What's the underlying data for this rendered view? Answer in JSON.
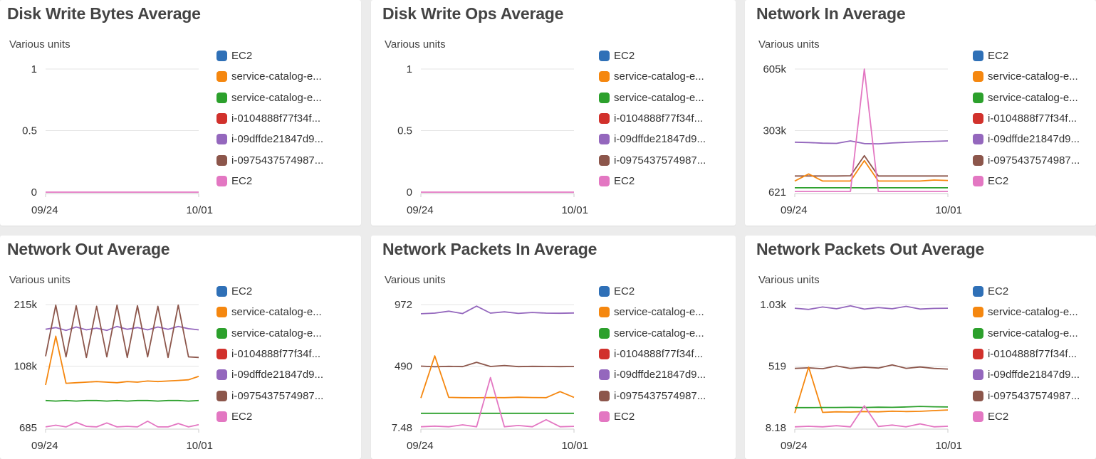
{
  "legend": [
    {
      "label": "EC2",
      "color": "#2f70b7"
    },
    {
      "label": "service-catalog-e...",
      "color": "#f5870f"
    },
    {
      "label": "service-catalog-e...",
      "color": "#2ca02c"
    },
    {
      "label": "i-0104888f77f34f...",
      "color": "#d1312c"
    },
    {
      "label": "i-09dffde21847d9...",
      "color": "#9467bd"
    },
    {
      "label": "i-0975437574987...",
      "color": "#8c564b"
    },
    {
      "label": "EC2",
      "color": "#e377c2"
    }
  ],
  "panels": [
    {
      "title": "Disk Write Bytes Average",
      "unit_label": "Various units",
      "chart_data": {
        "type": "line",
        "ylabel": "Various units",
        "y_ticks": [
          "1",
          "0.5",
          "0"
        ],
        "x_ticks": [
          "09/24",
          "10/01"
        ],
        "ylim": [
          0,
          1
        ],
        "series": [
          {
            "name": "EC2",
            "color": "#e377c2",
            "values": [
              0,
              0
            ]
          }
        ]
      }
    },
    {
      "title": "Disk Write Ops Average",
      "unit_label": "Various units",
      "chart_data": {
        "type": "line",
        "ylabel": "Various units",
        "y_ticks": [
          "1",
          "0.5",
          "0"
        ],
        "x_ticks": [
          "09/24",
          "10/01"
        ],
        "ylim": [
          0,
          1
        ],
        "series": [
          {
            "name": "EC2",
            "color": "#e377c2",
            "values": [
              0,
              0
            ]
          }
        ]
      }
    },
    {
      "title": "Network In Average",
      "unit_label": "Various units",
      "chart_data": {
        "type": "line",
        "ylabel": "Various units",
        "y_ticks": [
          "605k",
          "303k",
          "621"
        ],
        "x_ticks": [
          "09/24",
          "10/01"
        ],
        "ylim": [
          621,
          605000
        ],
        "series": [
          {
            "name": "i-09dffde21847d9...",
            "color": "#9467bd",
            "values": [
              246000,
              244000,
              241000,
              240000,
              252000,
              239000,
              238000,
              242000,
              245000,
              248000,
              250000,
              252000
            ]
          },
          {
            "name": "i-0975437574987...",
            "color": "#8c564b",
            "values": [
              80000,
              80000,
              80000,
              80000,
              81000,
              180000,
              80000,
              80000,
              80000,
              80000,
              80000,
              80000
            ]
          },
          {
            "name": "service-catalog-e...",
            "color": "#f5870f",
            "values": [
              55000,
              90000,
              55000,
              55000,
              55000,
              155000,
              55000,
              55000,
              55000,
              55000,
              60000,
              58000
            ]
          },
          {
            "name": "service-catalog-e...",
            "color": "#2ca02c",
            "values": [
              22000,
              22000,
              22000,
              22000,
              22000,
              22000,
              22000,
              22000,
              22000,
              22000,
              22000,
              22000
            ]
          },
          {
            "name": "EC2",
            "color": "#e377c2",
            "values": [
              4000,
              4000,
              4000,
              4000,
              4000,
              605000,
              4000,
              4000,
              4000,
              4000,
              4000,
              4000
            ]
          }
        ]
      }
    },
    {
      "title": "Network Out Average",
      "unit_label": "Various units",
      "chart_data": {
        "type": "line",
        "ylabel": "Various units",
        "y_ticks": [
          "215k",
          "108k",
          "685"
        ],
        "x_ticks": [
          "09/24",
          "10/01"
        ],
        "ylim": [
          685,
          215000
        ],
        "series": [
          {
            "name": "i-09dffde21847d9...",
            "color": "#9467bd",
            "values": [
              172000,
              175000,
              170000,
              176000,
              171000,
              174000,
              170000,
              177000,
              172000,
              175000,
              171000,
              176000,
              172000,
              177000,
              173000,
              171000
            ]
          },
          {
            "name": "i-0975437574987...",
            "color": "#8c564b",
            "values": [
              125000,
              214000,
              124000,
              213000,
              123000,
              212000,
              124000,
              214000,
              123000,
              213000,
              124000,
              212000,
              123000,
              214000,
              124000,
              123000
            ]
          },
          {
            "name": "service-catalog-e...",
            "color": "#f5870f",
            "values": [
              75000,
              160000,
              78000,
              79000,
              80000,
              81000,
              80000,
              79000,
              81000,
              80000,
              82000,
              81000,
              82000,
              83000,
              84000,
              90000
            ]
          },
          {
            "name": "service-catalog-e...",
            "color": "#2ca02c",
            "values": [
              48000,
              47000,
              48000,
              47000,
              48000,
              48000,
              47000,
              48000,
              47000,
              48000,
              48000,
              47000,
              48000,
              48000,
              47000,
              48000
            ]
          },
          {
            "name": "EC2",
            "color": "#e377c2",
            "values": [
              2000,
              5000,
              2000,
              10000,
              3000,
              2000,
              9000,
              2000,
              3000,
              2000,
              12000,
              2000,
              2000,
              8000,
              2000,
              6000
            ]
          }
        ]
      }
    },
    {
      "title": "Network Packets In Average",
      "unit_label": "Various units",
      "chart_data": {
        "type": "line",
        "ylabel": "Various units",
        "y_ticks": [
          "972",
          "490",
          "7.48"
        ],
        "x_ticks": [
          "09/24",
          "10/01"
        ],
        "ylim": [
          7.48,
          972
        ],
        "series": [
          {
            "name": "i-09dffde21847d9...",
            "color": "#9467bd",
            "values": [
              900,
              905,
              920,
              902,
              960,
              905,
              915,
              903,
              910,
              905,
              904,
              906
            ]
          },
          {
            "name": "i-0975437574987...",
            "color": "#8c564b",
            "values": [
              490,
              485,
              488,
              486,
              520,
              487,
              495,
              486,
              488,
              487,
              486,
              487
            ]
          },
          {
            "name": "service-catalog-e...",
            "color": "#f5870f",
            "values": [
              240,
              570,
              245,
              243,
              242,
              244,
              243,
              246,
              244,
              243,
              290,
              245
            ]
          },
          {
            "name": "service-catalog-e...",
            "color": "#2ca02c",
            "values": [
              120,
              120,
              120,
              120,
              120,
              120,
              120,
              120,
              120,
              120,
              120,
              120
            ]
          },
          {
            "name": "EC2",
            "color": "#e377c2",
            "values": [
              15,
              20,
              15,
              30,
              15,
              400,
              15,
              25,
              15,
              70,
              15,
              18
            ]
          }
        ]
      }
    },
    {
      "title": "Network Packets Out Average",
      "unit_label": "Various units",
      "chart_data": {
        "type": "line",
        "ylabel": "Various units",
        "y_ticks": [
          "1.03k",
          "519",
          "8.18"
        ],
        "x_ticks": [
          "09/24",
          "10/01"
        ],
        "ylim": [
          8.18,
          1030
        ],
        "series": [
          {
            "name": "i-09dffde21847d9...",
            "color": "#9467bd",
            "values": [
              1000,
              990,
              1010,
              995,
              1020,
              992,
              1005,
              995,
              1015,
              993,
              998,
              1000
            ]
          },
          {
            "name": "i-0975437574987...",
            "color": "#8c564b",
            "values": [
              500,
              505,
              498,
              520,
              500,
              510,
              503,
              530,
              501,
              512,
              500,
              495
            ]
          },
          {
            "name": "service-catalog-e...",
            "color": "#f5870f",
            "values": [
              130,
              510,
              135,
              140,
              138,
              142,
              140,
              145,
              142,
              144,
              150,
              155
            ]
          },
          {
            "name": "service-catalog-e...",
            "color": "#2ca02c",
            "values": [
              175,
              175,
              176,
              176,
              177,
              176,
              178,
              177,
              180,
              185,
              182,
              180
            ]
          },
          {
            "name": "EC2",
            "color": "#e377c2",
            "values": [
              15,
              20,
              15,
              25,
              15,
              190,
              18,
              30,
              15,
              40,
              15,
              20
            ]
          }
        ]
      }
    }
  ]
}
